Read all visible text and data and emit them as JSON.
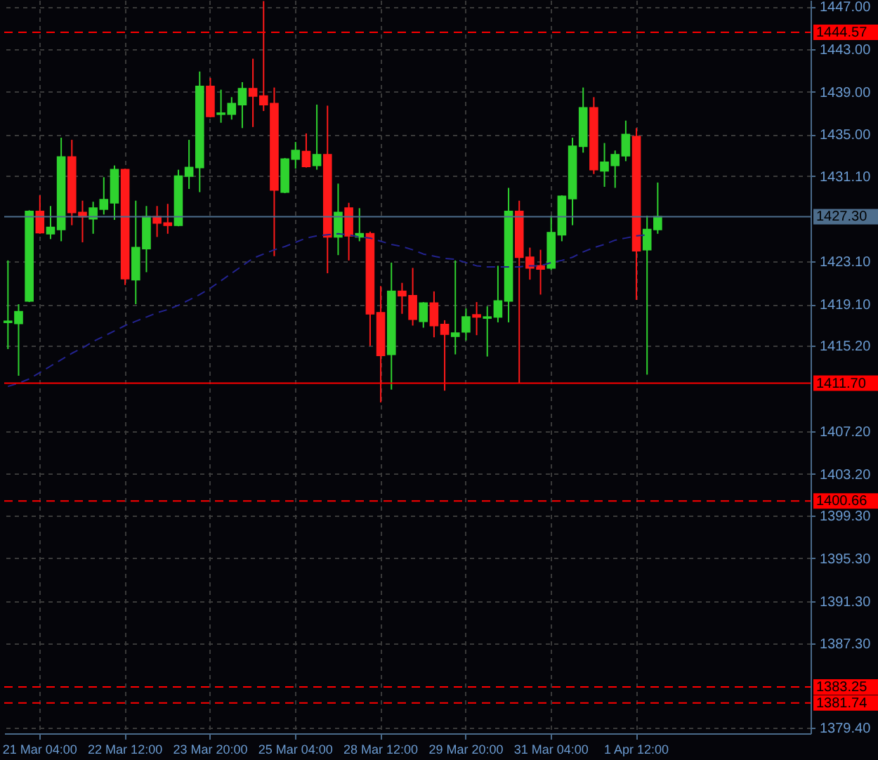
{
  "chart_data": {
    "type": "candlestick",
    "categories": [
      null,
      null,
      null,
      "21 Mar 04:00",
      null,
      null,
      null,
      null,
      null,
      null,
      null,
      "22 Mar 12:00",
      null,
      null,
      null,
      null,
      null,
      null,
      null,
      "23 Mar 20:00",
      null,
      null,
      null,
      null,
      null,
      null,
      null,
      "25 Mar 04:00",
      null,
      null,
      null,
      null,
      null,
      null,
      null,
      "28 Mar 12:00",
      null,
      null,
      null,
      null,
      null,
      null,
      null,
      "29 Mar 20:00",
      null,
      null,
      null,
      null,
      null,
      null,
      null,
      "31 Mar 04:00",
      null,
      null,
      null,
      null,
      null,
      null,
      null,
      "1 Apr 12:00",
      null,
      null,
      null,
      null,
      null,
      null,
      null,
      null,
      null,
      null,
      null,
      null,
      null,
      null,
      null,
      null
    ],
    "ohlc": [
      [
        1417.4,
        1423.2,
        1414.9,
        1417.5
      ],
      [
        1417.3,
        1419.1,
        1412.4,
        1418.4
      ],
      [
        1419.4,
        1427.9,
        1419.3,
        1427.8
      ],
      [
        1427.8,
        1429.3,
        1425.7,
        1425.8
      ],
      [
        1425.7,
        1428.3,
        1425.2,
        1426.3
      ],
      [
        1426.1,
        1434.7,
        1425.0,
        1432.9
      ],
      [
        1432.9,
        1434.5,
        1426.5,
        1427.7
      ],
      [
        1427.7,
        1428.8,
        1424.9,
        1427.3
      ],
      [
        1427.1,
        1428.7,
        1425.7,
        1428.1
      ],
      [
        1428.0,
        1431.0,
        1427.5,
        1428.9
      ],
      [
        1428.6,
        1432.1,
        1427.0,
        1431.7
      ],
      [
        1431.7,
        1431.8,
        1420.9,
        1421.5
      ],
      [
        1421.4,
        1428.8,
        1419.1,
        1424.4
      ],
      [
        1424.3,
        1428.3,
        1422.1,
        1427.3
      ],
      [
        1427.3,
        1428.3,
        1425.4,
        1426.7
      ],
      [
        1426.7,
        1428.5,
        1425.7,
        1426.5
      ],
      [
        1426.5,
        1431.7,
        1426.4,
        1431.1
      ],
      [
        1431.1,
        1434.5,
        1429.9,
        1431.9
      ],
      [
        1431.9,
        1440.9,
        1429.6,
        1439.5
      ],
      [
        1439.5,
        1440.3,
        1436.6,
        1436.7
      ],
      [
        1436.9,
        1439.2,
        1436.1,
        1437.0
      ],
      [
        1436.9,
        1438.5,
        1436.4,
        1437.9
      ],
      [
        1437.8,
        1439.9,
        1435.6,
        1439.3
      ],
      [
        1439.3,
        1442.1,
        1435.7,
        1438.6
      ],
      [
        1438.6,
        1447.5,
        1437.2,
        1437.8
      ],
      [
        1437.9,
        1439.4,
        1423.6,
        1429.8
      ],
      [
        1429.6,
        1432.8,
        1429.5,
        1432.7
      ],
      [
        1432.7,
        1434.3,
        1431.8,
        1433.5
      ],
      [
        1433.4,
        1435.1,
        1431.9,
        1432.0
      ],
      [
        1432.1,
        1437.8,
        1431.7,
        1433.1
      ],
      [
        1433.1,
        1437.7,
        1422.0,
        1425.4
      ],
      [
        1425.4,
        1430.4,
        1423.7,
        1427.7
      ],
      [
        1428.1,
        1428.6,
        1423.2,
        1425.5
      ],
      [
        1425.4,
        1428.1,
        1425.0,
        1425.7
      ],
      [
        1425.7,
        1425.9,
        1415.2,
        1418.2
      ],
      [
        1418.3,
        1420.8,
        1409.9,
        1414.3
      ],
      [
        1414.4,
        1423.0,
        1411.1,
        1420.3
      ],
      [
        1420.3,
        1421.1,
        1418.2,
        1419.9
      ],
      [
        1419.9,
        1422.5,
        1417.1,
        1417.7
      ],
      [
        1417.5,
        1419.3,
        1416.9,
        1419.2
      ],
      [
        1419.2,
        1420.3,
        1416.0,
        1417.1
      ],
      [
        1417.2,
        1417.6,
        1411.0,
        1416.3
      ],
      [
        1416.1,
        1423.2,
        1414.4,
        1416.4
      ],
      [
        1416.5,
        1418.7,
        1415.7,
        1417.9
      ],
      [
        1418.1,
        1419.3,
        1416.2,
        1417.9
      ],
      [
        1417.8,
        1418.9,
        1414.2,
        1417.9
      ],
      [
        1417.9,
        1422.7,
        1417.4,
        1419.4
      ],
      [
        1419.4,
        1430.0,
        1417.4,
        1427.8
      ],
      [
        1427.8,
        1428.8,
        1411.7,
        1423.5
      ],
      [
        1423.5,
        1424.4,
        1421.4,
        1422.5
      ],
      [
        1422.7,
        1424.2,
        1420.0,
        1422.4
      ],
      [
        1422.5,
        1427.4,
        1422.3,
        1425.8
      ],
      [
        1425.6,
        1429.3,
        1425.0,
        1429.2
      ],
      [
        1429.0,
        1434.7,
        1426.5,
        1433.9
      ],
      [
        1433.9,
        1439.4,
        1433.3,
        1437.5
      ],
      [
        1437.5,
        1438.5,
        1431.3,
        1431.7
      ],
      [
        1431.6,
        1434.2,
        1430.1,
        1432.4
      ],
      [
        1432.1,
        1433.5,
        1430.0,
        1433.1
      ],
      [
        1433.0,
        1436.3,
        1432.5,
        1435.0
      ],
      [
        1434.8,
        1435.6,
        1419.5,
        1424.1
      ],
      [
        1424.2,
        1427.4,
        1412.5,
        1426.1
      ],
      [
        1426.1,
        1430.5,
        1425.7,
        1427.3
      ],
      null,
      null,
      null,
      null,
      null,
      null,
      null,
      null,
      null,
      null,
      null,
      null,
      null,
      null
    ],
    "colors": [
      "#2fd32f",
      "#2fd32f",
      "#2fd32f",
      "#ff1a1a",
      "#2fd32f",
      "#2fd32f",
      "#ff1a1a",
      "#ff1a1a",
      "#2fd32f",
      "#2fd32f",
      "#2fd32f",
      "#ff1a1a",
      "#2fd32f",
      "#2fd32f",
      "#ff1a1a",
      "#ff1a1a",
      "#2fd32f",
      "#2fd32f",
      "#2fd32f",
      "#ff1a1a",
      "#2fd32f",
      "#2fd32f",
      "#2fd32f",
      "#ff1a1a",
      "#ff1a1a",
      "#ff1a1a",
      "#2fd32f",
      "#2fd32f",
      "#ff1a1a",
      "#2fd32f",
      "#ff1a1a",
      "#2fd32f",
      "#ff1a1a",
      "#2fd32f",
      "#ff1a1a",
      "#ff1a1a",
      "#2fd32f",
      "#ff1a1a",
      "#ff1a1a",
      "#2fd32f",
      "#ff1a1a",
      "#ff1a1a",
      "#2fd32f",
      "#2fd32f",
      "#ff1a1a",
      "#2fd32f",
      "#2fd32f",
      "#2fd32f",
      "#ff1a1a",
      "#ff1a1a",
      "#ff1a1a",
      "#2fd32f",
      "#2fd32f",
      "#2fd32f",
      "#2fd32f",
      "#ff1a1a",
      "#2fd32f",
      "#2fd32f",
      "#2fd32f",
      "#ff1a1a",
      "#2fd32f",
      "#2fd32f",
      null,
      null,
      null,
      null,
      null,
      null,
      null,
      null,
      null,
      null,
      null,
      null,
      null,
      null
    ],
    "series": [
      {
        "type": "line",
        "color": "#23238f",
        "line_style": "dashed",
        "values": [
          1411.4,
          1411.7,
          1412.1,
          1412.7,
          1413.3,
          1413.9,
          1414.5,
          1415.0,
          1415.6,
          1416.1,
          1416.6,
          1417.1,
          1417.5,
          1417.9,
          1418.3,
          1418.6,
          1419.0,
          1419.5,
          1420.0,
          1420.6,
          1421.3,
          1422.0,
          1422.7,
          1423.4,
          1423.8,
          1424.2,
          1424.5,
          1424.9,
          1425.3,
          1425.5,
          1425.6,
          1425.7,
          1425.6,
          1425.4,
          1425.3,
          1425.0,
          1424.7,
          1424.5,
          1424.2,
          1423.8,
          1423.6,
          1423.4,
          1423.3,
          1423.0,
          1422.7,
          1422.6,
          1422.6,
          1422.6,
          1422.6,
          1422.7,
          1422.7,
          1423.0,
          1423.2,
          1423.5,
          1424.0,
          1424.4,
          1424.7,
          1425.1,
          1425.3,
          1425.5,
          1425.6,
          null,
          null,
          null,
          null,
          null,
          null,
          null,
          null,
          null,
          null,
          null,
          null,
          null,
          null,
          null
        ]
      }
    ],
    "ylim": [
      1378.9,
      1447.6
    ],
    "yticks": [
      {
        "value": 1447,
        "label": "1447.00"
      },
      {
        "value": 1443,
        "label": "1443.00"
      },
      {
        "value": 1439,
        "label": "1439.00"
      },
      {
        "value": 1435,
        "label": "1435.00"
      },
      {
        "value": 1431.1,
        "label": "1431.10"
      },
      {
        "value": 1423.1,
        "label": "1423.10"
      },
      {
        "value": 1419.1,
        "label": "1419.10"
      },
      {
        "value": 1415.2,
        "label": "1415.20"
      },
      {
        "value": 1407.2,
        "label": "1407.20"
      },
      {
        "value": 1403.2,
        "label": "1403.20"
      },
      {
        "value": 1399.3,
        "label": "1399.30"
      },
      {
        "value": 1395.3,
        "label": "1395.30"
      },
      {
        "value": 1391.3,
        "label": "1391.30"
      },
      {
        "value": 1387.3,
        "label": "1387.30"
      },
      {
        "value": 1379.4,
        "label": "1379.40"
      }
    ],
    "ref_lines": [
      {
        "axis": "y",
        "value": 1444.57,
        "label": "1444.57",
        "color": "#ff0000",
        "line_style": "dashed"
      },
      {
        "axis": "y",
        "value": 1427.3,
        "label": "1427.30",
        "color": "#4d6d8c",
        "line_style": "solid"
      },
      {
        "axis": "y",
        "value": 1411.7,
        "label": "1411.70",
        "color": "#ff0000",
        "line_style": "solid"
      },
      {
        "axis": "y",
        "value": 1400.66,
        "label": "1400.66",
        "color": "#ff0000",
        "line_style": "dashed"
      },
      {
        "axis": "y",
        "value": 1383.25,
        "label": "1383.25",
        "color": "#ff0000",
        "line_style": "dashed"
      },
      {
        "axis": "y",
        "value": 1381.74,
        "label": "1381.74",
        "color": "#ff0000",
        "line_style": "dashed"
      }
    ],
    "grid": true
  }
}
